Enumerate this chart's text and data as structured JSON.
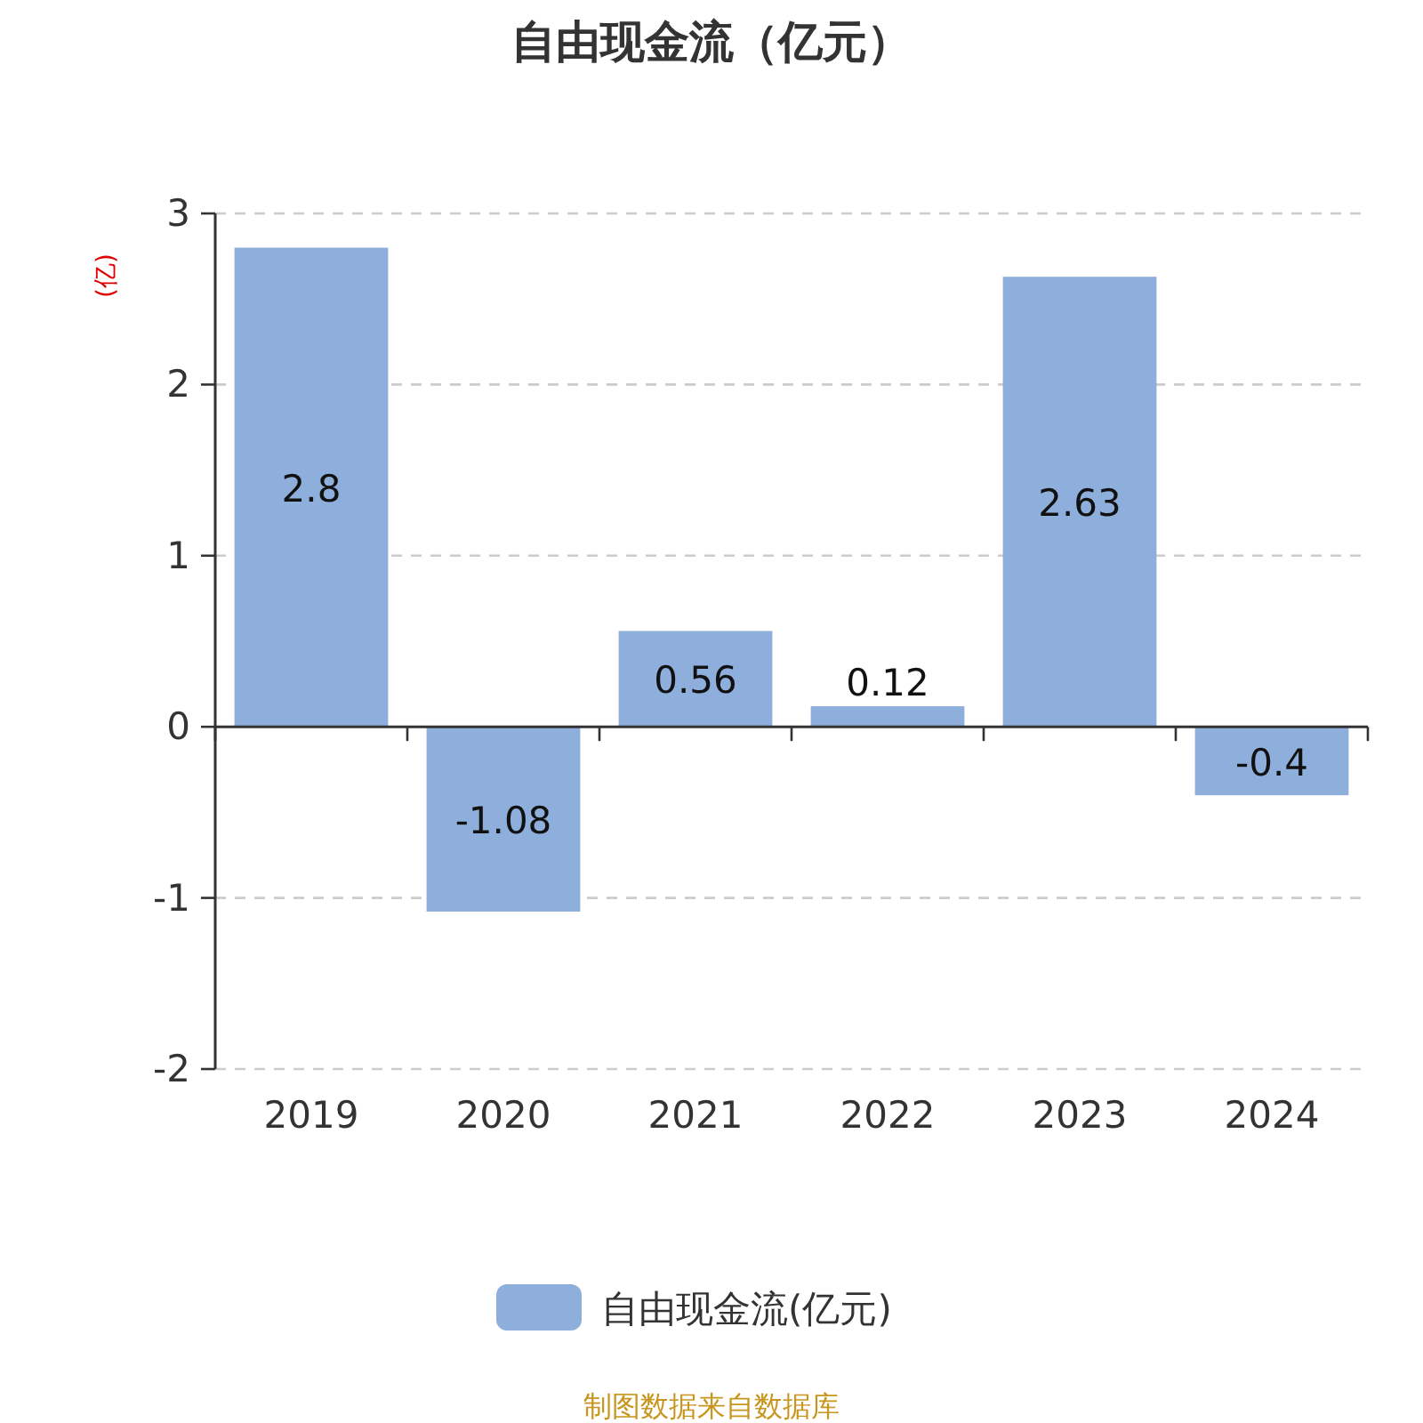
{
  "chart_data": {
    "type": "bar",
    "title": "自由现金流（亿元）",
    "ylabel": "(亿)",
    "categories": [
      "2019",
      "2020",
      "2021",
      "2022",
      "2023",
      "2024"
    ],
    "series": [
      {
        "name": "自由现金流(亿元)",
        "color": "#8eaedb",
        "values": [
          2.8,
          -1.08,
          0.56,
          0.12,
          2.63,
          -0.4
        ]
      }
    ],
    "ylim": [
      -2,
      3
    ],
    "yticks": [
      -2,
      -1,
      0,
      1,
      2,
      3
    ],
    "grid": "y",
    "legend": "bottom",
    "data_labels": true,
    "annotations": [
      "制图数据来自数据库"
    ]
  }
}
